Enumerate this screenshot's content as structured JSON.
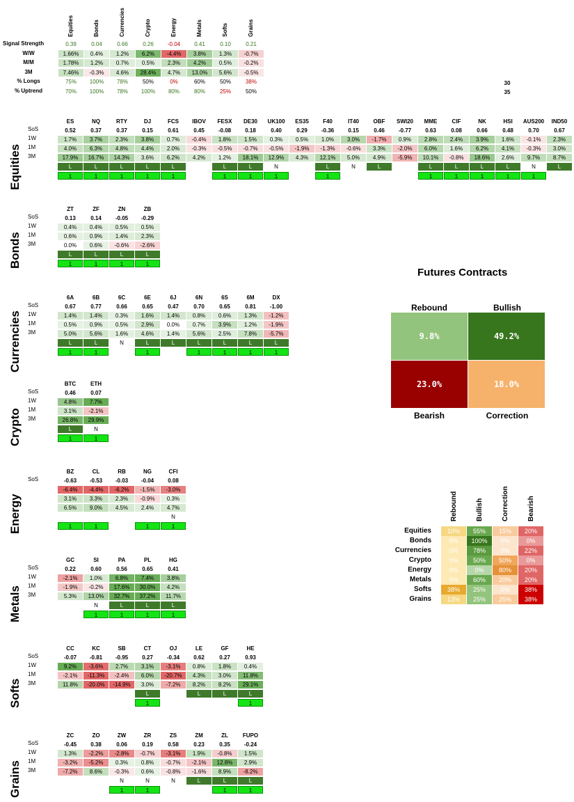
{
  "summary": {
    "headers": [
      "Equities",
      "Bonds",
      "Currencies",
      "Crypto",
      "Energy",
      "Metals",
      "Softs",
      "Grains"
    ],
    "rows": [
      {
        "label": "Signal Strength",
        "values": [
          "0.39",
          "0.04",
          "0.66",
          "0.26",
          "-0.04",
          "0.41",
          "0.10",
          "0.21"
        ]
      },
      {
        "label": "W/W",
        "values": [
          "1.66%",
          "0.4%",
          "1.2%",
          "6.2%",
          "-4.4%",
          "3.8%",
          "1.3%",
          "-0.7%"
        ]
      },
      {
        "label": "M/M",
        "values": [
          "1.78%",
          "1.2%",
          "0.7%",
          "0.5%",
          "2.3%",
          "4.2%",
          "0.5%",
          "-0.2%"
        ]
      },
      {
        "label": "3M",
        "values": [
          "7.46%",
          "-0.3%",
          "4.6%",
          "28.4%",
          "4.7%",
          "13.0%",
          "5.6%",
          "-0.5%"
        ]
      },
      {
        "label": "% Longs",
        "values": [
          "75%",
          "100%",
          "78%",
          "50%",
          "0%",
          "60%",
          "50%",
          "38%"
        ]
      },
      {
        "label": "% Uptrend",
        "values": [
          "70%",
          "100%",
          "78%",
          "100%",
          "80%",
          "80%",
          "25%",
          "50%"
        ]
      }
    ],
    "side_values": [
      "30",
      "35"
    ]
  },
  "row_labels": [
    "SoS",
    "1W",
    "1M",
    "3M"
  ],
  "sections": [
    {
      "name": "Equities",
      "cols": [
        "ES",
        "NQ",
        "RTY",
        "DJ",
        "FCS",
        "IBOV",
        "FESX",
        "DE30",
        "UK100",
        "ES35",
        "F40",
        "IT40",
        "OBF",
        "SWI20",
        "MME",
        "CIF",
        "NK",
        "HSI",
        "AUS200",
        "IND50"
      ],
      "sos": [
        "0.52",
        "0.37",
        "0.37",
        "0.15",
        "0.61",
        "0.45",
        "-0.08",
        "0.18",
        "0.40",
        "0.29",
        "-0.36",
        "0.15",
        "0.46",
        "-0.77",
        "0.63",
        "0.08",
        "0.66",
        "0.48",
        "0.70",
        "0.67"
      ],
      "w1": [
        "1.7%",
        "3.7%",
        "2.3%",
        "3.8%",
        "0.7%",
        "-0.4%",
        "1.8%",
        "1.5%",
        "0.3%",
        "0.5%",
        "1.0%",
        "3.0%",
        "-1.7%",
        "0.9%",
        "2.8%",
        "2.4%",
        "3.9%",
        "1.6%",
        "-0.1%",
        "2.3%"
      ],
      "m1": [
        "4.0%",
        "6.3%",
        "4.8%",
        "4.4%",
        "2.0%",
        "-0.3%",
        "-0.5%",
        "-0.7%",
        "-0.5%",
        "-1.9%",
        "-1.3%",
        "-0.6%",
        "3.3%",
        "-2.0%",
        "6.0%",
        "1.6%",
        "6.2%",
        "4.1%",
        "-0.3%",
        "3.0%"
      ],
      "m3": [
        "17.9%",
        "16.7%",
        "14.3%",
        "3.6%",
        "6.2%",
        "4.2%",
        "1.2%",
        "18.1%",
        "12.9%",
        "4.3%",
        "12.1%",
        "5.0%",
        "4.9%",
        "-5.9%",
        "10.1%",
        "-0.8%",
        "18.6%",
        "2.6%",
        "9.7%",
        "8.7%"
      ],
      "ln": [
        "L",
        "L",
        "L",
        "L",
        "L",
        "",
        "L",
        "L",
        "N",
        "",
        "L",
        "N",
        "L",
        "",
        "L",
        "L",
        "L",
        "L",
        "N",
        "L"
      ],
      "up": [
        "1",
        "1",
        "1",
        "1",
        "1",
        "",
        "1",
        "1",
        "1",
        "",
        "1",
        "",
        "",
        "",
        "1",
        "1",
        "1",
        "1",
        "1",
        ""
      ]
    },
    {
      "name": "Bonds",
      "cols": [
        "ZT",
        "ZF",
        "ZN",
        "ZB"
      ],
      "sos": [
        "0.13",
        "0.14",
        "-0.05",
        "-0.29"
      ],
      "w1": [
        "0.4%",
        "0.4%",
        "0.5%",
        "0.5%"
      ],
      "m1": [
        "0.6%",
        "0.9%",
        "1.4%",
        "2.3%"
      ],
      "m3": [
        "0.0%",
        "0.6%",
        "-0.6%",
        "-2.6%"
      ],
      "ln": [
        "L",
        "L",
        "L",
        "L"
      ],
      "up": [
        "1",
        "1",
        "1",
        "1"
      ]
    },
    {
      "name": "Currencies",
      "cols": [
        "6A",
        "6B",
        "6C",
        "6E",
        "6J",
        "6N",
        "6S",
        "6M",
        "DX"
      ],
      "sos": [
        "0.67",
        "0.77",
        "0.66",
        "0.65",
        "0.47",
        "0.70",
        "0.65",
        "0.81",
        "-1.00"
      ],
      "w1": [
        "1.4%",
        "1.4%",
        "0.3%",
        "1.6%",
        "1.4%",
        "0.8%",
        "0.6%",
        "1.3%",
        "-1.2%"
      ],
      "m1": [
        "0.5%",
        "0.9%",
        "0.5%",
        "2.9%",
        "0.0%",
        "0.7%",
        "3.9%",
        "1.2%",
        "-1.9%"
      ],
      "m3": [
        "5.0%",
        "5.6%",
        "1.6%",
        "4.6%",
        "1.4%",
        "5.6%",
        "2.5%",
        "7.8%",
        "-5.7%"
      ],
      "ln": [
        "L",
        "L",
        "N",
        "L",
        "L",
        "L",
        "L",
        "L",
        "L"
      ],
      "up": [
        "1",
        "1",
        "",
        "1",
        "",
        "1",
        "1",
        "1",
        "1"
      ]
    },
    {
      "name": "Crypto",
      "cols": [
        "BTC",
        "ETH"
      ],
      "sos": [
        "0.46",
        "0.07"
      ],
      "w1": [
        "4.8%",
        "7.7%"
      ],
      "m1": [
        "3.1%",
        "-2.1%"
      ],
      "m3": [
        "26.8%",
        "29.9%"
      ],
      "ln": [
        "L",
        "N"
      ],
      "up": [
        "1",
        "1"
      ]
    },
    {
      "name": "Energy",
      "cols": [
        "BZ",
        "CL",
        "RB",
        "NG",
        "CFI"
      ],
      "sos": [
        "-0.63",
        "-0.53",
        "-0.03",
        "-0.04",
        "0.08"
      ],
      "w1": [
        "-6.4%",
        "-4.4%",
        "-6.2%",
        "-1.5%",
        "-3.0%"
      ],
      "m1": [
        "3.1%",
        "3.3%",
        "2.3%",
        "-0.9%",
        "0.3%"
      ],
      "m3": [
        "6.5%",
        "9.0%",
        "4.5%",
        "2.4%",
        "4.7%"
      ],
      "ln": [
        "",
        "",
        "",
        "",
        "N"
      ],
      "up": [
        "1",
        "1",
        "",
        "1",
        "1"
      ]
    },
    {
      "name": "Metals",
      "cols": [
        "GC",
        "SI",
        "PA",
        "PL",
        "HG"
      ],
      "sos": [
        "0.22",
        "0.60",
        "0.56",
        "0.65",
        "0.41"
      ],
      "w1": [
        "-2.1%",
        "1.0%",
        "6.8%",
        "7.4%",
        "3.8%"
      ],
      "m1": [
        "-1.9%",
        "-0.2%",
        "17.6%",
        "30.0%",
        "4.2%"
      ],
      "m3": [
        "5.3%",
        "13.0%",
        "32.7%",
        "37.2%",
        "11.7%"
      ],
      "ln": [
        "",
        "N",
        "L",
        "L",
        "L"
      ],
      "up": [
        "",
        "1",
        "1",
        "1",
        "1"
      ]
    },
    {
      "name": "Softs",
      "cols": [
        "CC",
        "KC",
        "SB",
        "CT",
        "OJ",
        "LE",
        "GF",
        "HE"
      ],
      "sos": [
        "-0.07",
        "-0.81",
        "-0.95",
        "0.27",
        "-0.34",
        "0.62",
        "0.27",
        "0.93"
      ],
      "w1": [
        "9.2%",
        "-3.6%",
        "2.7%",
        "3.1%",
        "-3.1%",
        "0.8%",
        "1.8%",
        "0.4%"
      ],
      "m1": [
        "-2.1%",
        "-11.3%",
        "-2.4%",
        "6.0%",
        "-20.7%",
        "4.3%",
        "3.0%",
        "11.8%"
      ],
      "m3": [
        "11.8%",
        "-20.0%",
        "-14.9%",
        "3.0%",
        "-7.2%",
        "8.2%",
        "8.2%",
        "29.1%"
      ],
      "ln": [
        "",
        "",
        "",
        "L",
        "",
        "L",
        "L",
        "L"
      ],
      "up": [
        "",
        "",
        "",
        "1",
        "",
        "",
        "",
        "1"
      ]
    },
    {
      "name": "Grains",
      "cols": [
        "ZC",
        "ZO",
        "ZW",
        "ZR",
        "ZS",
        "ZM",
        "ZL",
        "FUPO"
      ],
      "sos": [
        "-0.45",
        "0.38",
        "0.06",
        "0.19",
        "0.58",
        "0.23",
        "0.35",
        "-0.24"
      ],
      "w1": [
        "1.3%",
        "-2.2%",
        "-2.8%",
        "-0.7%",
        "-3.1%",
        "1.9%",
        "-0.8%",
        "1.5%"
      ],
      "m1": [
        "-3.2%",
        "-5.2%",
        "0.3%",
        "0.8%",
        "-0.7%",
        "-2.1%",
        "12.8%",
        "2.9%"
      ],
      "m3": [
        "-7.2%",
        "8.6%",
        "-0.3%",
        "0.6%",
        "-0.8%",
        "-1.6%",
        "8.9%",
        "-8.2%"
      ],
      "ln": [
        "",
        "",
        "N",
        "N",
        "N",
        "L",
        "L",
        "L"
      ],
      "up": [
        "",
        "",
        "1",
        "1",
        "",
        "",
        "1",
        "1"
      ]
    }
  ],
  "futures": {
    "title": "Futures Contracts",
    "rebound_label": "Rebound",
    "bullish_label": "Bullish",
    "bearish_label": "Bearish",
    "correction_label": "Correction",
    "rebound": "9.8%",
    "bullish": "49.2%",
    "bearish": "23.0%",
    "correction": "18.0%",
    "colors": {
      "rebound": "#93c47d",
      "bullish": "#38761d",
      "bearish": "#990000",
      "correction": "#f6b26b"
    }
  },
  "state_table": {
    "headers": [
      "Rebound",
      "Bullish",
      "Correction",
      "Bearish"
    ],
    "rows": [
      {
        "label": "Equities",
        "values": [
          "10%",
          "55%",
          "15%",
          "20%"
        ]
      },
      {
        "label": "Bonds",
        "values": [
          "0%",
          "100%",
          "0%",
          "0%"
        ]
      },
      {
        "label": "Currencies",
        "values": [
          "0%",
          "78%",
          "0%",
          "22%"
        ]
      },
      {
        "label": "Crypto",
        "values": [
          "0%",
          "50%",
          "50%",
          "0%"
        ]
      },
      {
        "label": "Energy",
        "values": [
          "0%",
          "0%",
          "80%",
          "20%"
        ]
      },
      {
        "label": "Metals",
        "values": [
          "0%",
          "60%",
          "20%",
          "20%"
        ]
      },
      {
        "label": "Softs",
        "values": [
          "38%",
          "25%",
          "0%",
          "38%"
        ]
      },
      {
        "label": "Grains",
        "values": [
          "13%",
          "25%",
          "25%",
          "38%"
        ]
      }
    ]
  },
  "chart_data": {
    "type": "table",
    "title": "Futures Contracts",
    "categories": [
      "Rebound",
      "Bullish",
      "Bearish",
      "Correction"
    ],
    "values": [
      9.8,
      49.2,
      23.0,
      18.0
    ]
  }
}
